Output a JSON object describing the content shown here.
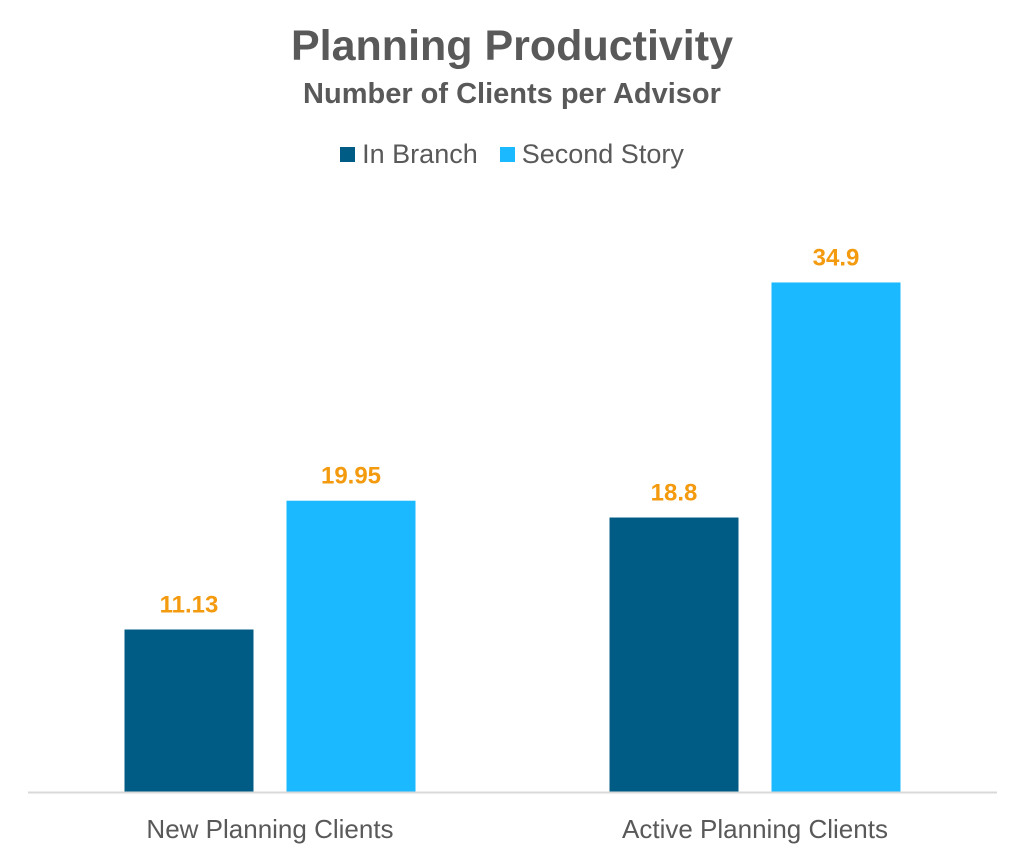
{
  "chart_data": {
    "type": "bar",
    "title": "Planning Productivity",
    "subtitle": "Number of Clients per Advisor",
    "xlabel": "",
    "ylabel": "",
    "ylim": [
      0,
      40
    ],
    "grid": false,
    "legend_position": "top",
    "categories": [
      "New Planning Clients",
      "Active Planning Clients"
    ],
    "series": [
      {
        "name": "In Branch",
        "color": "#005b85",
        "values": [
          11.13,
          18.8
        ],
        "labels": [
          "11.13",
          "18.8"
        ]
      },
      {
        "name": "Second Story",
        "color": "#1bb9ff",
        "values": [
          19.95,
          34.9
        ],
        "labels": [
          "19.95",
          "34.9"
        ]
      }
    ],
    "label_color": "#f39a0f",
    "axis_color": "#d9d9d9",
    "text_color": "#595959"
  }
}
